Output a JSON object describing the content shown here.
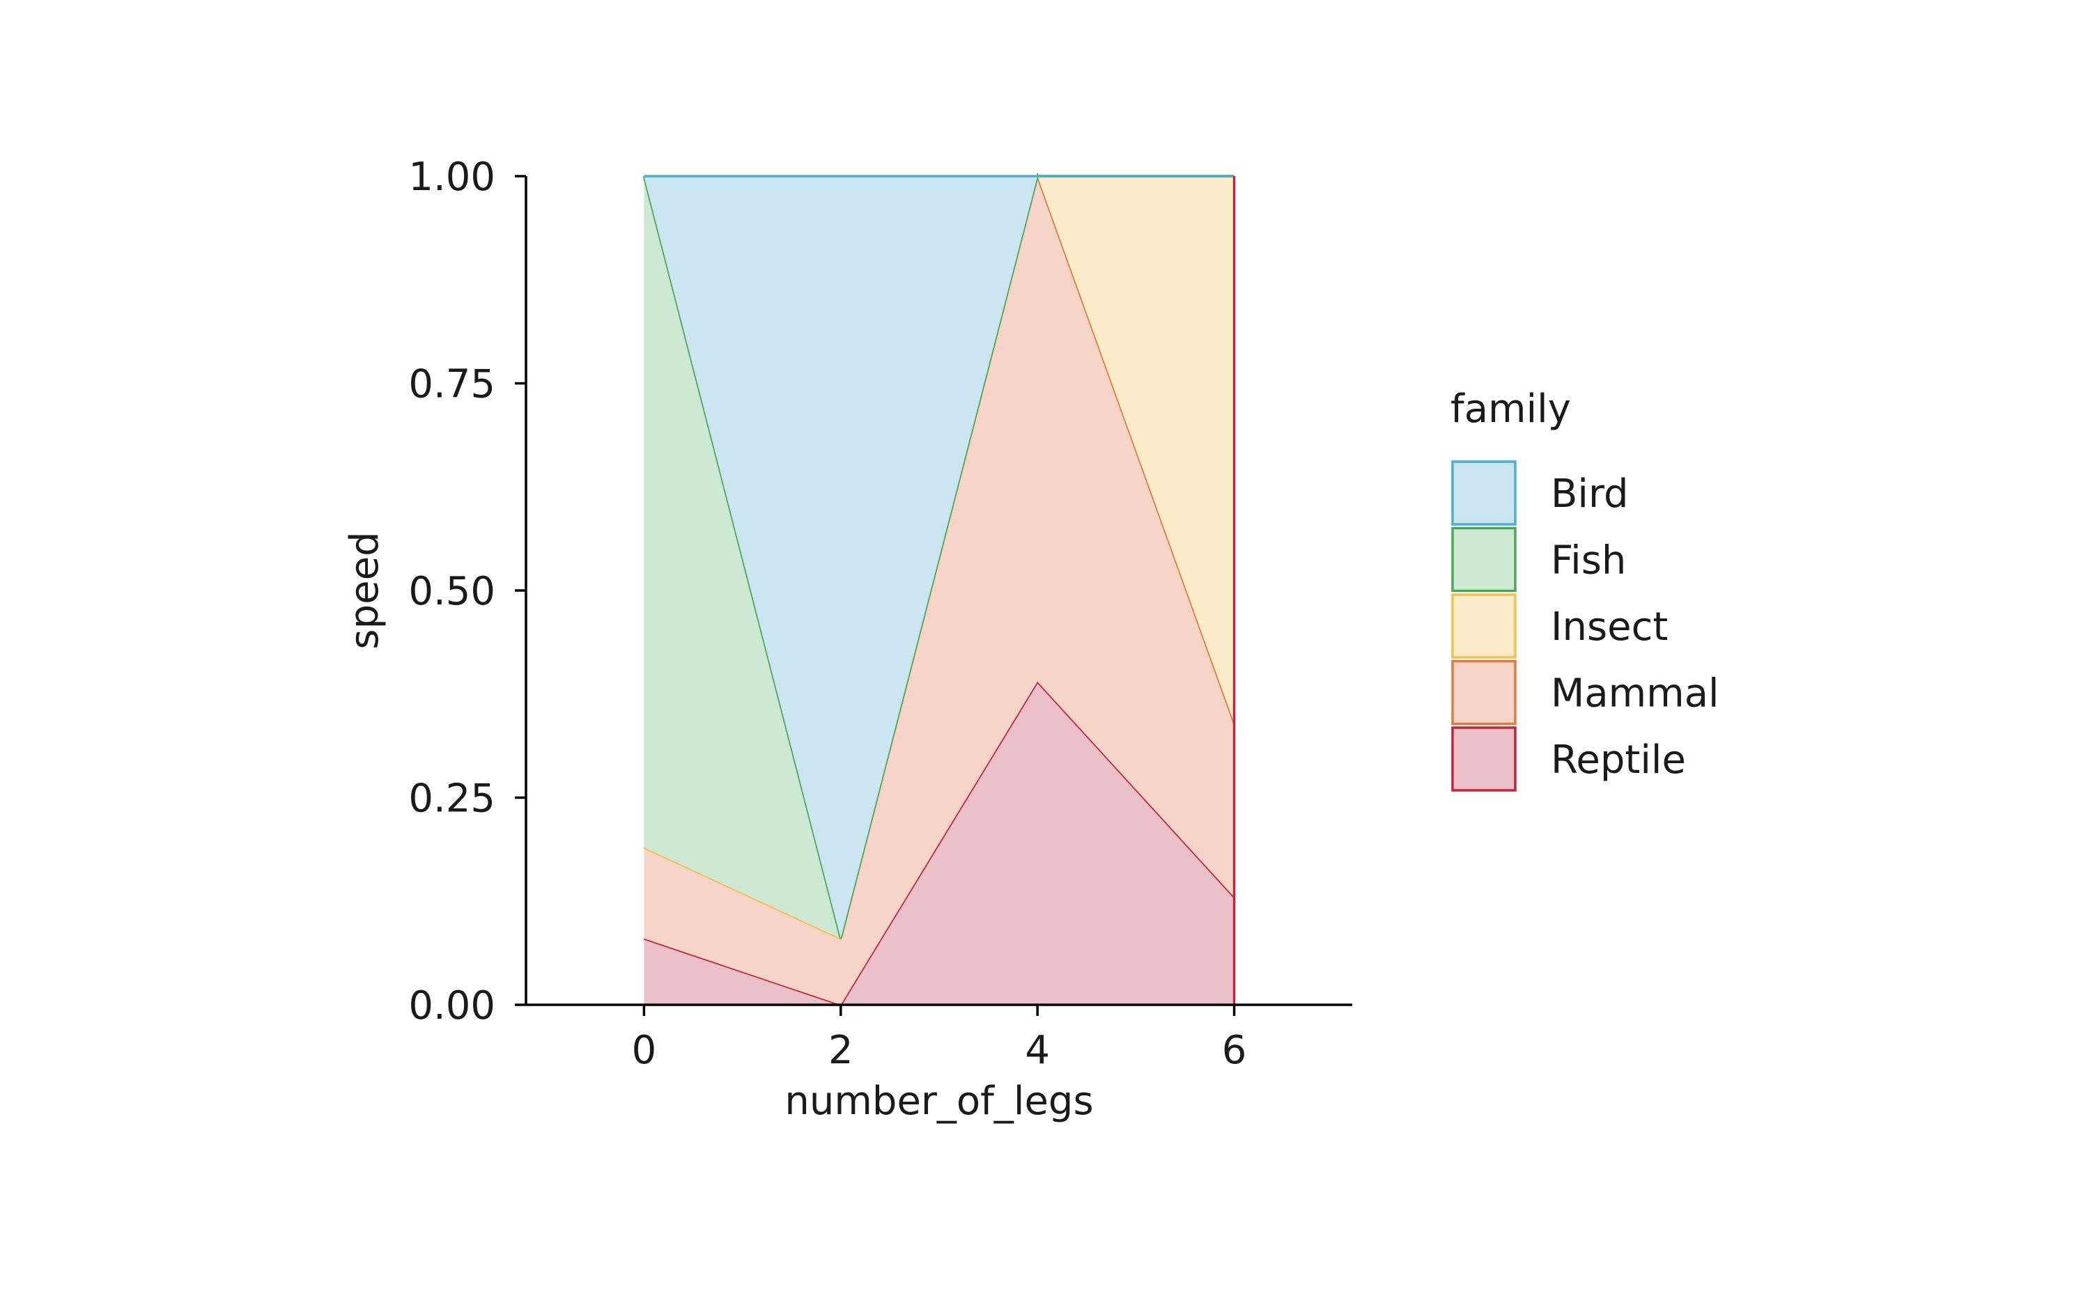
{
  "chart_data": {
    "type": "area",
    "stacked": "fill",
    "xlabel": "number_of_legs",
    "ylabel": "speed",
    "x": [
      0,
      2,
      4,
      6
    ],
    "xlim": [
      -1.2,
      7.2
    ],
    "ylim": [
      0,
      1
    ],
    "x_ticks": [
      0,
      2,
      4,
      6
    ],
    "x_tick_labels": [
      "0",
      "2",
      "4",
      "6"
    ],
    "y_ticks": [
      0,
      0.25,
      0.5,
      0.75,
      1
    ],
    "y_tick_labels": [
      "0.00",
      "0.25",
      "0.50",
      "0.75",
      "1.00"
    ],
    "grid": false,
    "legend": {
      "title": "family",
      "position": "right"
    },
    "series": [
      {
        "name": "Reptile",
        "fill": "#ecc0c9",
        "stroke": "#c1253c",
        "values": [
          0.08,
          0.0,
          0.39,
          0.13
        ]
      },
      {
        "name": "Mammal",
        "fill": "#f6d5c8",
        "stroke": "#e07b3e",
        "values": [
          0.11,
          0.08,
          0.61,
          0.21
        ]
      },
      {
        "name": "Insect",
        "fill": "#fcecca",
        "stroke": "#f2c14e",
        "values": [
          0.0,
          0.0,
          0.0,
          0.66
        ]
      },
      {
        "name": "Fish",
        "fill": "#cde8d3",
        "stroke": "#4aa858",
        "values": [
          0.81,
          0.0,
          0.0,
          0.0
        ]
      },
      {
        "name": "Bird",
        "fill": "#cbe5f1",
        "stroke": "#4aaed6",
        "values": [
          0.0,
          0.92,
          0.0,
          0.0
        ]
      }
    ],
    "legend_order": [
      "Bird",
      "Fish",
      "Insect",
      "Mammal",
      "Reptile"
    ]
  }
}
